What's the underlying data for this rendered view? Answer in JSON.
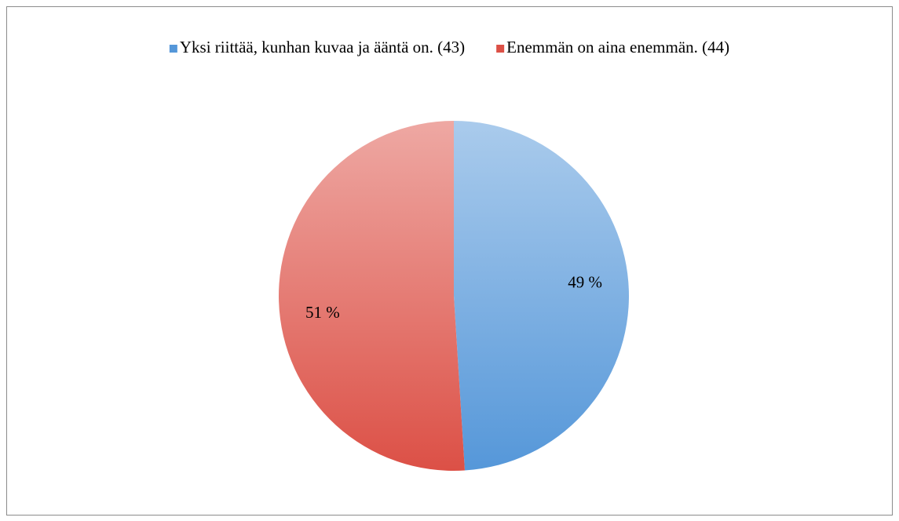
{
  "chart_data": {
    "type": "pie",
    "categories": [
      "Yksi riittää, kunhan kuvaa ja ääntä on. (43)",
      "Enemmän on aina enemmän. (44)"
    ],
    "values": [
      49,
      51
    ],
    "value_labels": [
      "49 %",
      "51 %"
    ],
    "colors": [
      "#5597d9",
      "#dc5046"
    ],
    "legend": "top"
  }
}
